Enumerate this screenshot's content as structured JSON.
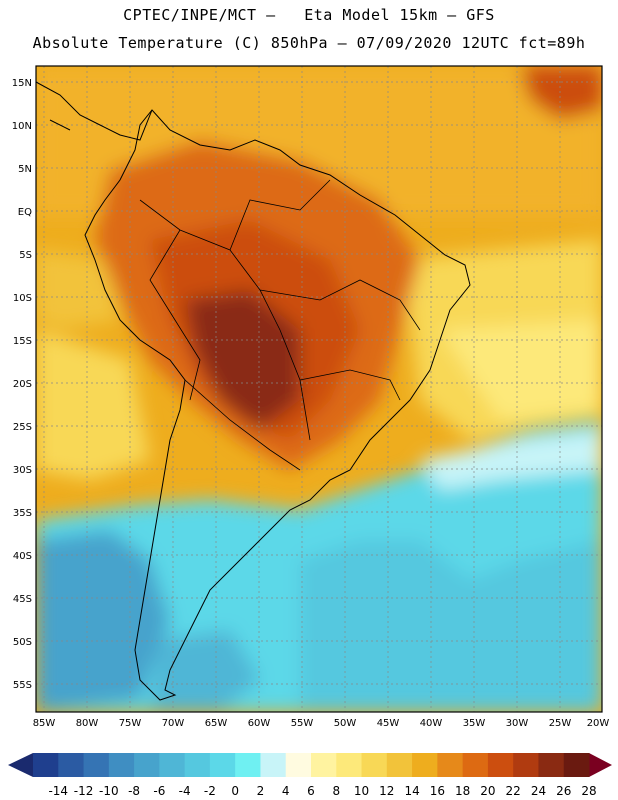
{
  "header": {
    "line1": "CPTEC/INPE/MCT –   Eta Model 15km – GFS",
    "line2": "Absolute Temperature (C) 850hPa – 07/09/2020 12UTC fct=89h"
  },
  "axes": {
    "lat_labels": [
      "15N",
      "10N",
      "5N",
      "EQ",
      "5S",
      "10S",
      "15S",
      "20S",
      "25S",
      "30S",
      "35S",
      "40S",
      "45S",
      "50S",
      "55S"
    ],
    "lon_labels": [
      "85W",
      "80W",
      "75W",
      "70W",
      "65W",
      "60W",
      "55W",
      "50W",
      "45W",
      "40W",
      "35W",
      "30W",
      "25W",
      "20W"
    ]
  },
  "colorbar": {
    "ticks": [
      "-14",
      "-12",
      "-10",
      "-8",
      "-6",
      "-4",
      "-2",
      "0",
      "2",
      "4",
      "6",
      "8",
      "10",
      "12",
      "14",
      "16",
      "18",
      "20",
      "22",
      "24",
      "26",
      "28"
    ],
    "colors": [
      "#1f3f8e",
      "#2b5ba3",
      "#3574b4",
      "#3f8ec2",
      "#47a3cc",
      "#4fb6d6",
      "#55c8df",
      "#5cd8e8",
      "#6ff0f2",
      "#c8f4f8",
      "#fffbe0",
      "#fff3a0",
      "#fde97a",
      "#f8d856",
      "#f2c33a",
      "#eead1e",
      "#e6891a",
      "#dd6a12",
      "#cc4e0f",
      "#b03b10",
      "#8a2a12",
      "#6a1a10"
    ],
    "low_arrow_color": "#1a2a6e",
    "high_arrow_color": "#7a0020"
  }
}
